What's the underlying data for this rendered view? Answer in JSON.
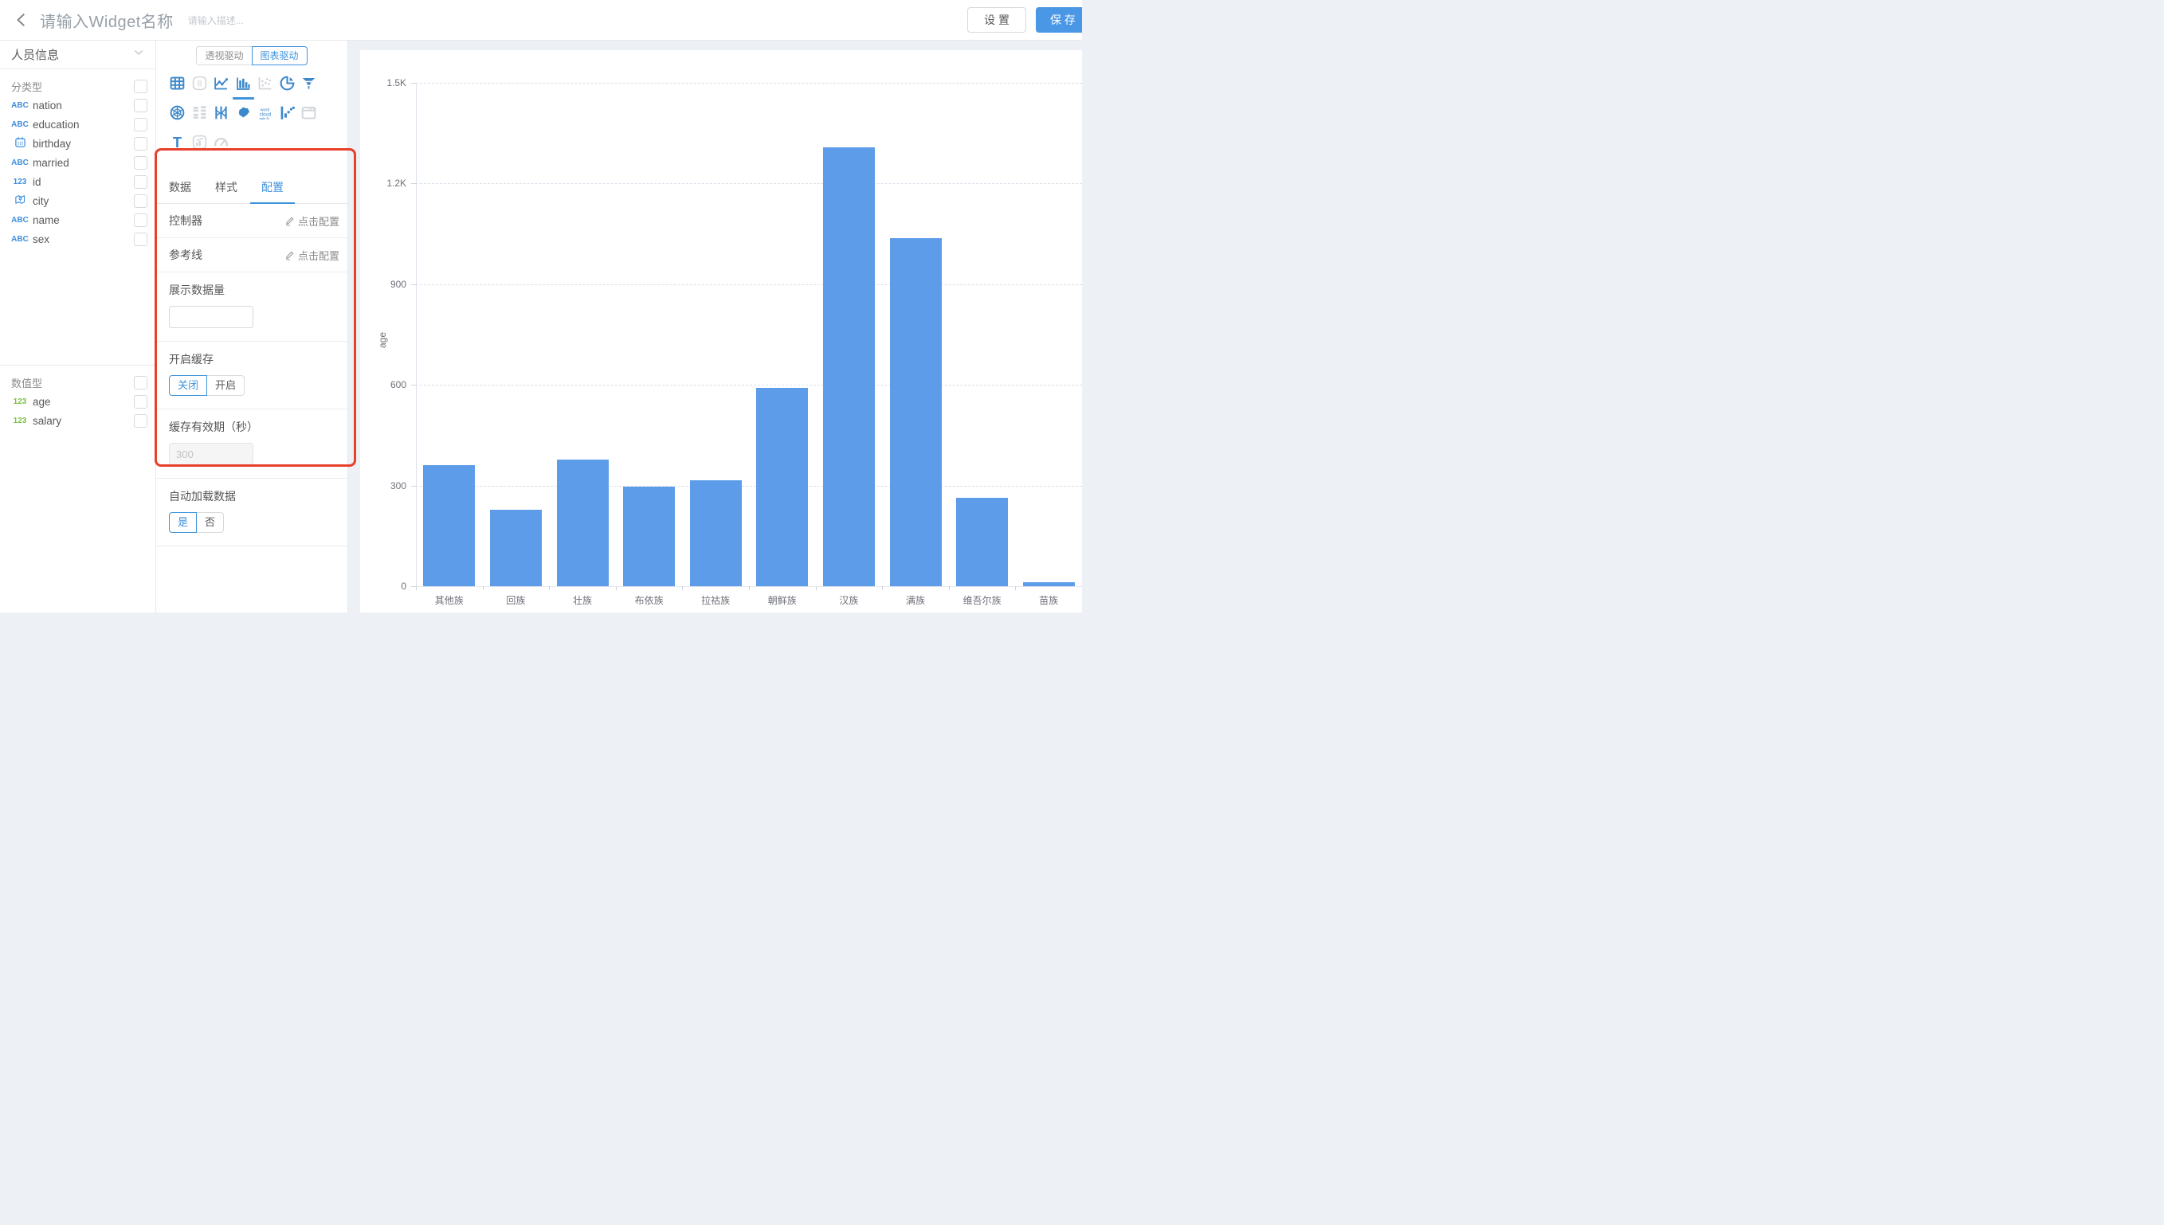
{
  "topbar": {
    "widget_name_placeholder": "请输入Widget名称",
    "desc_placeholder": "请输入描述...",
    "settings_label": "设 置",
    "save_label": "保 存"
  },
  "sidebar": {
    "view_name": "人员信息",
    "icon_text": {
      "abc": "ABC",
      "num": "123"
    },
    "sections": [
      {
        "label": "分类型",
        "fields": [
          {
            "icon": "abc",
            "color": "blue",
            "name": "nation"
          },
          {
            "icon": "abc",
            "color": "blue",
            "name": "education"
          },
          {
            "icon": "calendar",
            "color": "blue",
            "name": "birthday"
          },
          {
            "icon": "abc",
            "color": "blue",
            "name": "married"
          },
          {
            "icon": "num",
            "color": "blue",
            "name": "id"
          },
          {
            "icon": "map",
            "color": "blue",
            "name": "city"
          },
          {
            "icon": "abc",
            "color": "blue",
            "name": "name"
          },
          {
            "icon": "abc",
            "color": "blue",
            "name": "sex"
          }
        ]
      },
      {
        "label": "数值型",
        "fields": [
          {
            "icon": "num",
            "color": "green",
            "name": "age"
          },
          {
            "icon": "num",
            "color": "green",
            "name": "salary"
          }
        ]
      }
    ]
  },
  "panel": {
    "mode_toggle": [
      {
        "label": "透视驱动",
        "active": false
      },
      {
        "label": "图表驱动",
        "active": true
      }
    ],
    "chart_types": [
      {
        "name": "table",
        "active": true,
        "selected": false
      },
      {
        "name": "kpi-card",
        "active": false,
        "selected": false
      },
      {
        "name": "line-chart",
        "active": true,
        "selected": false
      },
      {
        "name": "bar-chart",
        "active": true,
        "selected": true
      },
      {
        "name": "scatter-plot",
        "active": false,
        "selected": false
      },
      {
        "name": "pie-chart",
        "active": true,
        "selected": false
      },
      {
        "name": "funnel",
        "active": true,
        "selected": false
      },
      {
        "name": "radar",
        "active": true,
        "selected": false
      },
      {
        "name": "sankey",
        "active": false,
        "selected": false
      },
      {
        "name": "parallel",
        "active": true,
        "selected": false
      },
      {
        "name": "china-map",
        "active": true,
        "selected": false
      },
      {
        "name": "word-cloud",
        "active": true,
        "selected": false
      },
      {
        "name": "waterfall",
        "active": true,
        "selected": false
      },
      {
        "name": "iframe",
        "active": false,
        "selected": false
      },
      {
        "name": "text",
        "active": true,
        "selected": false
      },
      {
        "name": "combo-chart",
        "active": false,
        "selected": false
      },
      {
        "name": "gauge",
        "active": false,
        "selected": false
      }
    ],
    "tabs": [
      {
        "label": "数据",
        "active": false
      },
      {
        "label": "样式",
        "active": false
      },
      {
        "label": "配置",
        "active": true
      }
    ],
    "config": {
      "controller_label": "控制器",
      "controller_link": "点击配置",
      "refline_label": "参考线",
      "refline_link": "点击配置",
      "display_count_label": "展示数据量",
      "display_count_value": "",
      "cache_label": "开启缓存",
      "cache_options": [
        {
          "label": "关闭",
          "active": true
        },
        {
          "label": "开启",
          "active": false
        }
      ],
      "cache_ttl_label": "缓存有效期（秒）",
      "cache_ttl_placeholder": "300",
      "autoload_label": "自动加载数据",
      "autoload_options": [
        {
          "label": "是",
          "active": true
        },
        {
          "label": "否",
          "active": false
        }
      ]
    }
  },
  "chart_data": {
    "type": "bar",
    "title": "",
    "categories": [
      "其他族",
      "回族",
      "壮族",
      "布依族",
      "拉祜族",
      "朝鲜族",
      "汉族",
      "满族",
      "维吾尔族",
      "苗族"
    ],
    "values": [
      360,
      228,
      376,
      297,
      316,
      590,
      1307,
      1036,
      264,
      12
    ],
    "xlabel": "",
    "ylabel": "age",
    "ylim": [
      0,
      1500
    ],
    "yticks": [
      {
        "v": 0,
        "label": "0"
      },
      {
        "v": 300,
        "label": "300"
      },
      {
        "v": 600,
        "label": "600"
      },
      {
        "v": 900,
        "label": "900"
      },
      {
        "v": 1200,
        "label": "1.2K"
      },
      {
        "v": 1500,
        "label": "1.5K"
      }
    ],
    "grid": "horizontal-dashed",
    "legend": "none",
    "bar_color": "#5c9ce8"
  },
  "colors": {
    "accent_blue": "#3f93dd",
    "icon_blue": "#3d88ca",
    "icon_gray": "#d2d5d9",
    "bar_blue": "#5c9ce8",
    "save_button_blue": "#4a97e5",
    "annotation_red": "#e8402a",
    "field_icon_blue": "#3e8ede",
    "field_icon_green": "#7bc043"
  }
}
